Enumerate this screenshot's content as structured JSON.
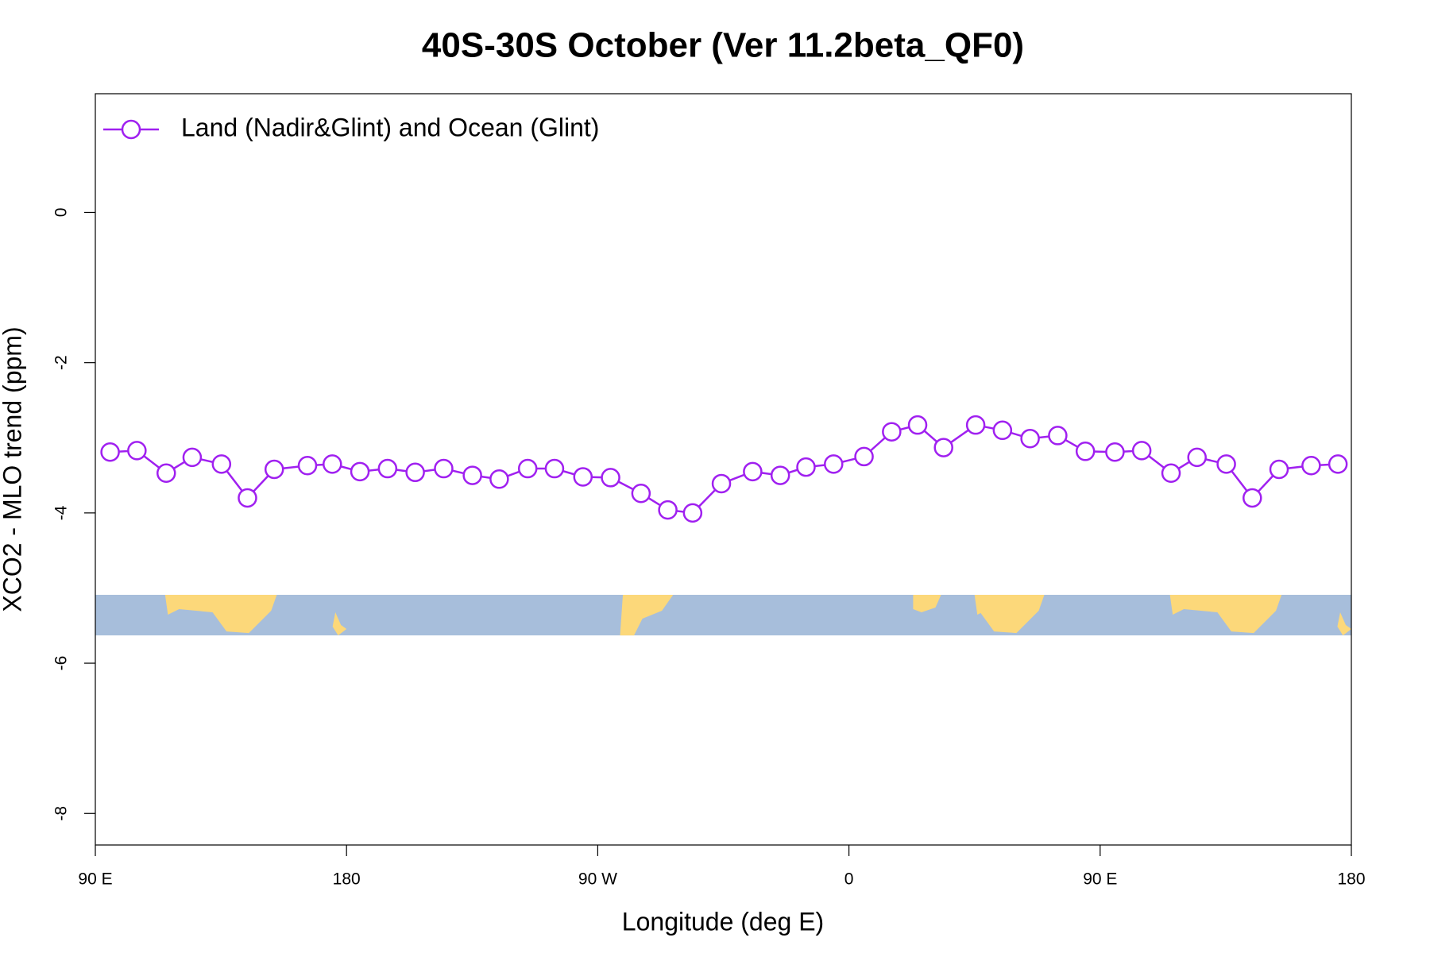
{
  "chart_data": {
    "type": "line",
    "title": "40S-30S October (Ver 11.2beta_QF0)",
    "x_label": "Longitude (deg E)",
    "y_label": "XCO2 - MLO trend (ppm)",
    "x": [
      95.3,
      104.9,
      115.4,
      124.7,
      135.2,
      144.5,
      154.1,
      166.0,
      174.9,
      184.8,
      194.7,
      204.6,
      214.8,
      225.1,
      234.7,
      244.9,
      254.5,
      264.7,
      274.6,
      285.5,
      295.1,
      304.0,
      314.3,
      325.5,
      335.4,
      344.6,
      354.5,
      365.4,
      375.3,
      384.6,
      393.9,
      405.4,
      415.0,
      424.9,
      434.8,
      444.7,
      455.3,
      464.9,
      475.4,
      484.7,
      495.2,
      504.5,
      514.1,
      525.6,
      535.2
    ],
    "series": [
      {
        "name": "Land (Nadir&Glint) and Ocean (Glint)",
        "color": "#a020f0",
        "values": [
          -3.19,
          -3.17,
          -3.47,
          -3.26,
          -3.35,
          -3.8,
          -3.42,
          -3.37,
          -3.35,
          -3.45,
          -3.41,
          -3.46,
          -3.41,
          -3.5,
          -3.55,
          -3.41,
          -3.41,
          -3.52,
          -3.53,
          -3.74,
          -3.96,
          -4.0,
          -3.61,
          -3.45,
          -3.5,
          -3.39,
          -3.35,
          -3.25,
          -2.92,
          -2.83,
          -3.13,
          -2.83,
          -2.9,
          -3.01,
          -2.97,
          -3.18,
          -3.19,
          -3.17,
          -3.47,
          -3.26,
          -3.35,
          -3.8,
          -3.42,
          -3.37,
          -3.35
        ]
      }
    ],
    "xlim": [
      90,
      540
    ],
    "xticks": [
      {
        "value": 90,
        "label": "90 E"
      },
      {
        "value": 180,
        "label": "180"
      },
      {
        "value": 270,
        "label": "90 W"
      },
      {
        "value": 360,
        "label": "0"
      },
      {
        "value": 450,
        "label": "90 E"
      },
      {
        "value": 540,
        "label": "180"
      }
    ],
    "ylim": [
      -8.42,
      1.58
    ],
    "yticks": [
      -8,
      -6,
      -4,
      -2,
      0
    ],
    "legend": "top left",
    "grid": false
  }
}
